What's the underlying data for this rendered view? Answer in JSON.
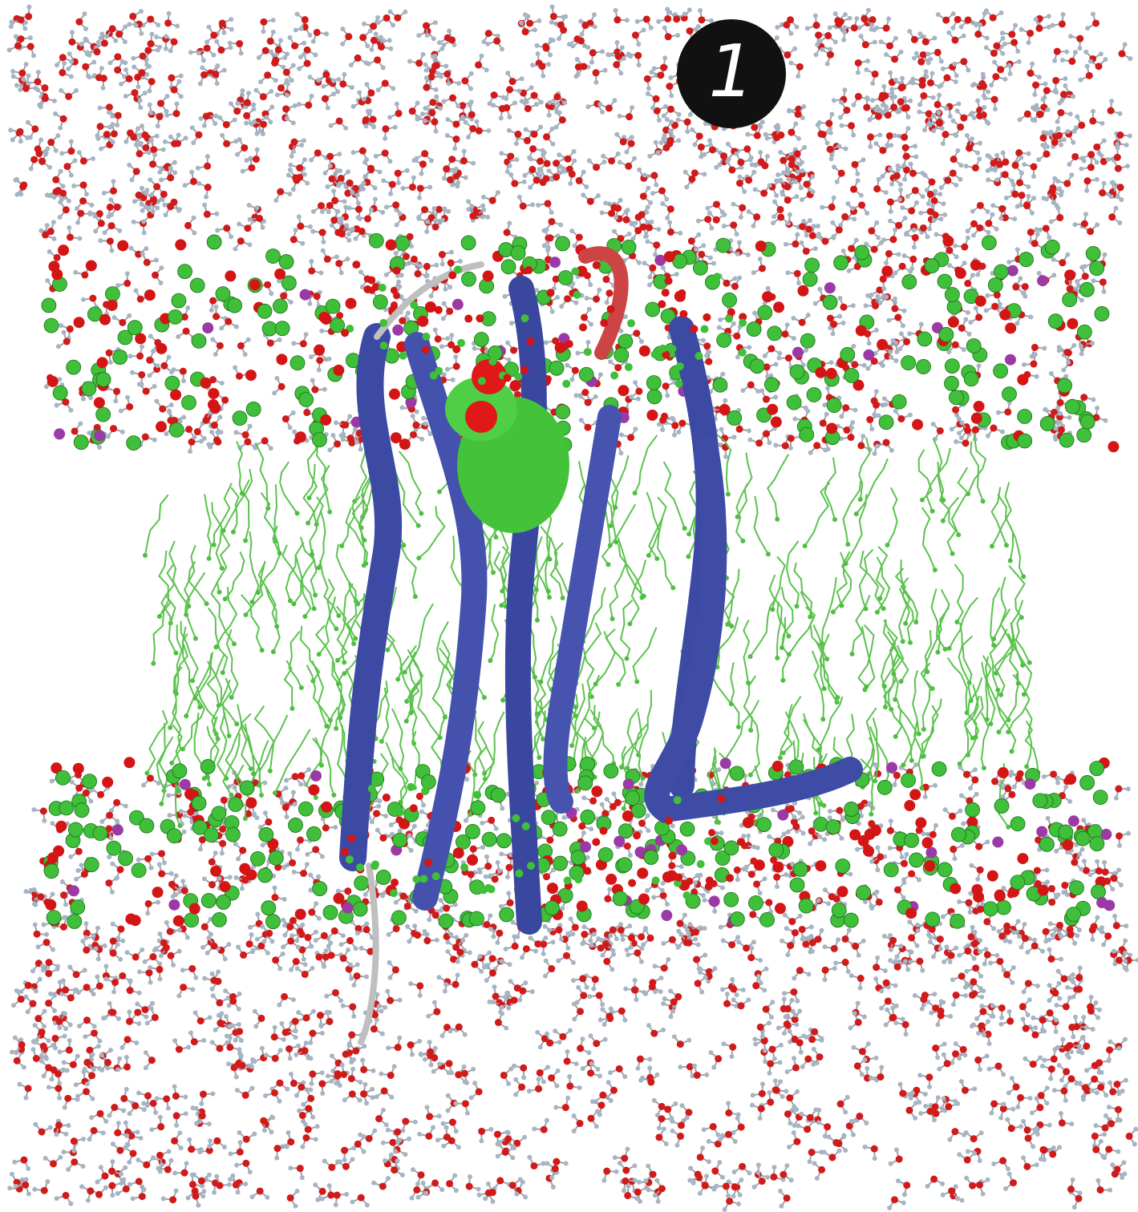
{
  "badge": {
    "label": "1"
  }
}
